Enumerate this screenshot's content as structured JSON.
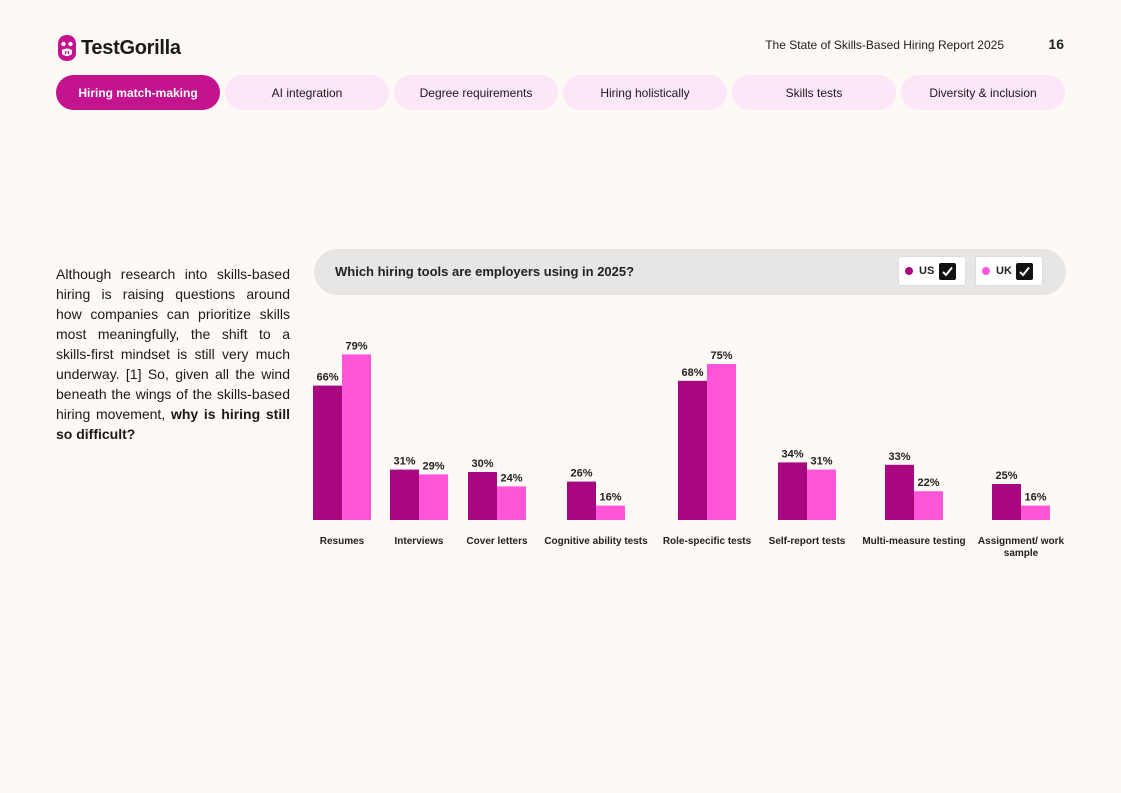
{
  "header": {
    "brand": "TestGorilla",
    "report_title": "The State of Skills-Based Hiring Report 2025",
    "page_number": "16"
  },
  "tabs": [
    {
      "label": "Hiring match-making",
      "active": true
    },
    {
      "label": "AI integration",
      "active": false
    },
    {
      "label": "Degree requirements",
      "active": false
    },
    {
      "label": "Hiring holistically",
      "active": false
    },
    {
      "label": "Skills tests",
      "active": false
    },
    {
      "label": "Diversity & inclusion",
      "active": false
    }
  ],
  "body": {
    "text": "Although research into skills-based hiring is raising questions around how companies can prioritize skills most meaningfully, the shift to a skills-first mindset is still very much underway. [1] So, given all the wind beneath the wings of the skills-based hiring movement, ",
    "bold": "why is hiring still so difficult?"
  },
  "colors": {
    "accent": "#c4138f",
    "us": "#a8077f",
    "uk": "#ff55d9",
    "tab_bg": "#fde6f8"
  },
  "legend": [
    {
      "label": "US",
      "checked": true
    },
    {
      "label": "UK",
      "checked": true
    }
  ],
  "chart_data": {
    "type": "bar",
    "title": "Which hiring tools are employers using in 2025?",
    "categories": [
      "Resumes",
      "Interviews",
      "Cover letters",
      "Cognitive ability tests",
      "Role-specific tests",
      "Self-report tests",
      "Multi-measure testing",
      "Assignment/ work sample"
    ],
    "series": [
      {
        "name": "US",
        "values": [
          66,
          31,
          30,
          26,
          68,
          34,
          33,
          25
        ]
      },
      {
        "name": "UK",
        "values": [
          79,
          29,
          24,
          16,
          75,
          31,
          22,
          16
        ]
      }
    ],
    "value_suffix": "%",
    "baseline_value": 10,
    "ylim": [
      10,
      79
    ],
    "grid": false,
    "legend_position": "top-right"
  }
}
